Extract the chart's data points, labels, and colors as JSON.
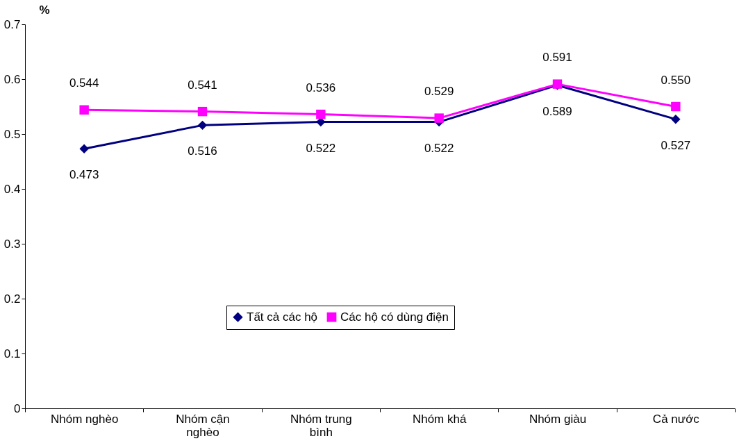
{
  "chart_data": {
    "type": "line",
    "ylabel": "%",
    "categories": [
      "Nhóm nghèo",
      "Nhóm cận nghèo",
      "Nhóm trung bình",
      "Nhóm khá",
      "Nhóm giàu",
      "Cả nước"
    ],
    "series": [
      {
        "name": "Tất cả các hộ",
        "color": "#000080",
        "marker": "diamond",
        "values": [
          0.473,
          0.516,
          0.522,
          0.522,
          0.589,
          0.527
        ],
        "value_labels": [
          "0.473",
          "0.516",
          "0.522",
          "0.522",
          "0.589",
          "0.527"
        ]
      },
      {
        "name": "Các hộ có dùng điện",
        "color": "#ff00ff",
        "marker": "square",
        "values": [
          0.544,
          0.541,
          0.536,
          0.529,
          0.591,
          0.55
        ],
        "value_labels": [
          "0.544",
          "0.541",
          "0.536",
          "0.529",
          "0.591",
          "0.550"
        ]
      }
    ],
    "ylim": [
      0,
      0.7
    ],
    "yticks": [
      0,
      0.1,
      0.2,
      0.3,
      0.4,
      0.5,
      0.6,
      0.7
    ],
    "grid": false,
    "legend": "bottom",
    "line_style": "solid"
  }
}
